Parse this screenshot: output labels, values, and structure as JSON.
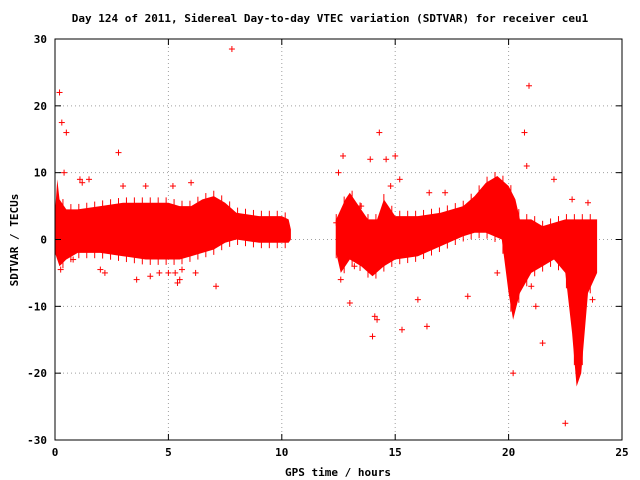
{
  "chart_data": {
    "type": "scatter",
    "title": "Day 124 of 2011, Sidereal Day-to-day VTEC variation (SDTVAR) for receiver ceu1",
    "xlabel": "GPS time / hours",
    "ylabel": "SDTVAR / TECUs",
    "xlim": [
      0,
      25
    ],
    "ylim": [
      -30,
      30
    ],
    "xticks": [
      "0",
      "5",
      "10",
      "15",
      "20",
      "25"
    ],
    "yticks": [
      "-30",
      "-20",
      "-10",
      "0",
      "10",
      "20",
      "30"
    ],
    "grid": true,
    "marker": "+",
    "color": "#ff0000",
    "band_upper": [
      [
        0.0,
        4
      ],
      [
        0.1,
        9
      ],
      [
        0.2,
        6
      ],
      [
        0.5,
        4.5
      ],
      [
        1,
        4.5
      ],
      [
        2,
        5
      ],
      [
        3,
        5.5
      ],
      [
        4,
        5.5
      ],
      [
        5,
        5.5
      ],
      [
        5.5,
        5
      ],
      [
        6,
        5
      ],
      [
        6.5,
        6
      ],
      [
        7,
        6.5
      ],
      [
        7.5,
        5.5
      ],
      [
        8,
        4
      ],
      [
        9,
        3.5
      ],
      [
        10,
        3.5
      ],
      [
        10.3,
        3
      ],
      [
        10.4,
        1.5
      ]
    ],
    "band_lower": [
      [
        10.4,
        0
      ],
      [
        10.3,
        -0.5
      ],
      [
        10,
        -0.5
      ],
      [
        9,
        -0.5
      ],
      [
        8,
        0
      ],
      [
        7.5,
        -0.5
      ],
      [
        7,
        -1.5
      ],
      [
        6.5,
        -2
      ],
      [
        6,
        -2.5
      ],
      [
        5.5,
        -3
      ],
      [
        5,
        -3
      ],
      [
        4,
        -3
      ],
      [
        3,
        -2.5
      ],
      [
        2,
        -2
      ],
      [
        1,
        -2
      ],
      [
        0.5,
        -3
      ],
      [
        0.2,
        -4
      ],
      [
        0.0,
        -2
      ]
    ],
    "band2_upper": [
      [
        12.4,
        3
      ],
      [
        12.8,
        6
      ],
      [
        13,
        7
      ],
      [
        13.4,
        5
      ],
      [
        13.8,
        3
      ],
      [
        14.2,
        3
      ],
      [
        14.5,
        6
      ],
      [
        15,
        3.5
      ],
      [
        16,
        3.5
      ],
      [
        17,
        4
      ],
      [
        18,
        5
      ],
      [
        18.5,
        6.5
      ],
      [
        19,
        8.5
      ],
      [
        19.5,
        9.5
      ],
      [
        20,
        8
      ],
      [
        20.3,
        6
      ],
      [
        20.5,
        3
      ],
      [
        21,
        3
      ],
      [
        21.5,
        2
      ],
      [
        22,
        2.5
      ],
      [
        22.5,
        3
      ],
      [
        23,
        3
      ],
      [
        23.5,
        3
      ],
      [
        23.9,
        3
      ]
    ],
    "band2_lower": [
      [
        23.9,
        -5
      ],
      [
        23.5,
        -8
      ],
      [
        23.2,
        -20
      ],
      [
        23,
        -22
      ],
      [
        22.8,
        -14
      ],
      [
        22.5,
        -5
      ],
      [
        22,
        -3
      ],
      [
        21.5,
        -4
      ],
      [
        21,
        -5
      ],
      [
        20.5,
        -8
      ],
      [
        20.2,
        -12
      ],
      [
        20,
        -8
      ],
      [
        19.7,
        0
      ],
      [
        19,
        1
      ],
      [
        18.5,
        1
      ],
      [
        18,
        0.5
      ],
      [
        17,
        -1
      ],
      [
        16,
        -2.5
      ],
      [
        15,
        -3
      ],
      [
        14.5,
        -4
      ],
      [
        14,
        -5.5
      ],
      [
        13.5,
        -4
      ],
      [
        13,
        -3
      ],
      [
        12.6,
        -5
      ],
      [
        12.4,
        -2
      ]
    ],
    "x": [
      0.2,
      0.3,
      0.25,
      0.5,
      0.6,
      1.2,
      1.5,
      2.2,
      2.8,
      3.0,
      4.2,
      4.6,
      5.2,
      5.5,
      5.6,
      6.0,
      6.2,
      7.1,
      7.8,
      0.4,
      0.8,
      1.1,
      2.0,
      3.6,
      4.0,
      5.0,
      5.3,
      5.4,
      12.5,
      12.7,
      13.0,
      13.2,
      13.9,
      14.0,
      14.1,
      14.3,
      14.6,
      15.0,
      15.2,
      15.3,
      16.4,
      16.5,
      18.2,
      19.2,
      20.7,
      20.8,
      20.9,
      21.5,
      22.5,
      22.8,
      23.0,
      12.4,
      12.6,
      13.5,
      14.2,
      14.8,
      16.0,
      17.2,
      19.5,
      20.1,
      21.0,
      21.2,
      22.0,
      23.5,
      23.7,
      20.2
    ],
    "y": [
      22,
      17.5,
      -4.5,
      16,
      -1,
      8.5,
      9,
      -5,
      13,
      8,
      -5.5,
      -5,
      8,
      -6,
      -4.5,
      8.5,
      -5,
      -7,
      28.5,
      10,
      -3,
      9,
      -4.5,
      -6,
      8,
      -5,
      -5,
      -6.5,
      10,
      12.5,
      -9.5,
      -4,
      12,
      -14.5,
      -11.5,
      16,
      12,
      12.5,
      9,
      -13.5,
      -13,
      7,
      -8.5,
      8,
      16,
      11,
      23,
      -15.5,
      -27.5,
      6,
      -16.5,
      2.5,
      -6,
      5,
      -12,
      8,
      -9,
      7,
      -5,
      6,
      -7,
      -10,
      9,
      5.5,
      -9,
      -20
    ]
  }
}
